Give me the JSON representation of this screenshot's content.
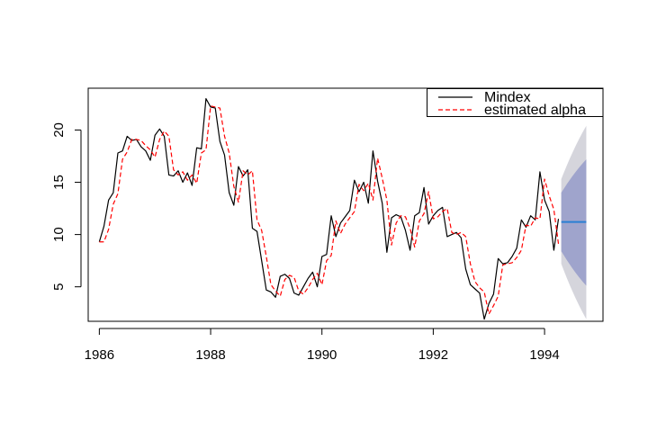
{
  "chart_data": {
    "type": "line",
    "title": "",
    "xlabel": "",
    "ylabel": "",
    "xlim": [
      1985.8,
      1995.05
    ],
    "ylim": [
      1.7,
      24.0
    ],
    "x_ticks": [
      1986,
      1988,
      1990,
      1992,
      1994
    ],
    "y_ticks": [
      5,
      10,
      15,
      20
    ],
    "legend": {
      "placement": "top-right",
      "clipped": true
    },
    "series": [
      {
        "name": "Mindex",
        "color": "#000000",
        "style": "solid",
        "start": 1986.0,
        "step": 0.0833333,
        "values": [
          9.3,
          10.8,
          13.3,
          14.0,
          17.8,
          18.0,
          19.4,
          19.0,
          19.1,
          18.4,
          18.0,
          17.1,
          19.5,
          20.1,
          19.4,
          15.7,
          15.6,
          16.1,
          15.0,
          15.9,
          14.7,
          18.3,
          18.2,
          23.0,
          22.2,
          22.1,
          18.9,
          17.6,
          14.0,
          12.8,
          16.5,
          15.6,
          16.2,
          10.6,
          10.3,
          7.5,
          4.7,
          4.5,
          4.0,
          6.0,
          6.2,
          5.8,
          4.4,
          4.2,
          5.0,
          5.8,
          6.4,
          5.0,
          7.9,
          8.1,
          11.8,
          9.8,
          11.1,
          11.7,
          12.3,
          15.2,
          14.1,
          15.0,
          13.0,
          18.0,
          15.1,
          13.0,
          8.3,
          11.6,
          11.9,
          11.7,
          10.4,
          8.5,
          11.8,
          12.1,
          14.5,
          11.0,
          11.8,
          12.3,
          12.6,
          9.8,
          10.0,
          10.2,
          9.7,
          6.7,
          5.2,
          4.8,
          4.4,
          1.9,
          3.4,
          4.3,
          7.7,
          7.2,
          7.3,
          7.9,
          8.7,
          11.4,
          10.7,
          11.8,
          11.4,
          16.0,
          13.3,
          12.2,
          8.5,
          11.5
        ]
      },
      {
        "name": "estimated alpha",
        "color": "#ff0000",
        "style": "dashed",
        "start": 1986.0,
        "step": 0.0833333,
        "values": [
          9.3,
          9.3,
          10.5,
          12.9,
          13.9,
          17.2,
          17.9,
          19.1,
          19.1,
          19.0,
          18.5,
          18.1,
          17.4,
          19.1,
          19.9,
          19.4,
          16.2,
          15.7,
          16.0,
          15.2,
          15.7,
          14.9,
          17.8,
          18.1,
          22.3,
          22.2,
          22.1,
          19.4,
          17.8,
          14.6,
          13.1,
          16.1,
          15.7,
          16.1,
          11.4,
          10.4,
          7.9,
          5.2,
          4.6,
          4.1,
          5.7,
          6.1,
          5.9,
          4.6,
          4.3,
          4.9,
          5.7,
          6.3,
          5.2,
          7.5,
          8.0,
          11.3,
          10.1,
          11.0,
          11.6,
          12.2,
          14.8,
          14.2,
          14.9,
          13.3,
          17.3,
          15.4,
          13.3,
          9.0,
          11.1,
          11.8,
          11.7,
          10.6,
          8.8,
          11.3,
          12.0,
          14.1,
          11.5,
          11.7,
          12.2,
          12.5,
          10.2,
          10.0,
          10.2,
          9.8,
          7.2,
          5.5,
          4.9,
          4.5,
          2.4,
          3.2,
          4.1,
          7.1,
          7.2,
          7.3,
          7.8,
          8.5,
          10.9,
          10.8,
          11.6,
          11.5,
          15.3,
          13.7,
          12.4,
          9.1
        ]
      }
    ],
    "forecast": {
      "mean_color": "#2a7fd4",
      "x_start": 1994.3,
      "x_end": 1994.75,
      "mean": 11.2,
      "band80": {
        "color": "#9fa4cc",
        "upper": [
          14.0,
          17.2
        ],
        "lower": [
          8.4,
          5.1
        ]
      },
      "band95": {
        "color": "#d5d5dc",
        "upper": [
          15.3,
          20.4
        ],
        "lower": [
          7.2,
          1.9
        ]
      }
    }
  }
}
